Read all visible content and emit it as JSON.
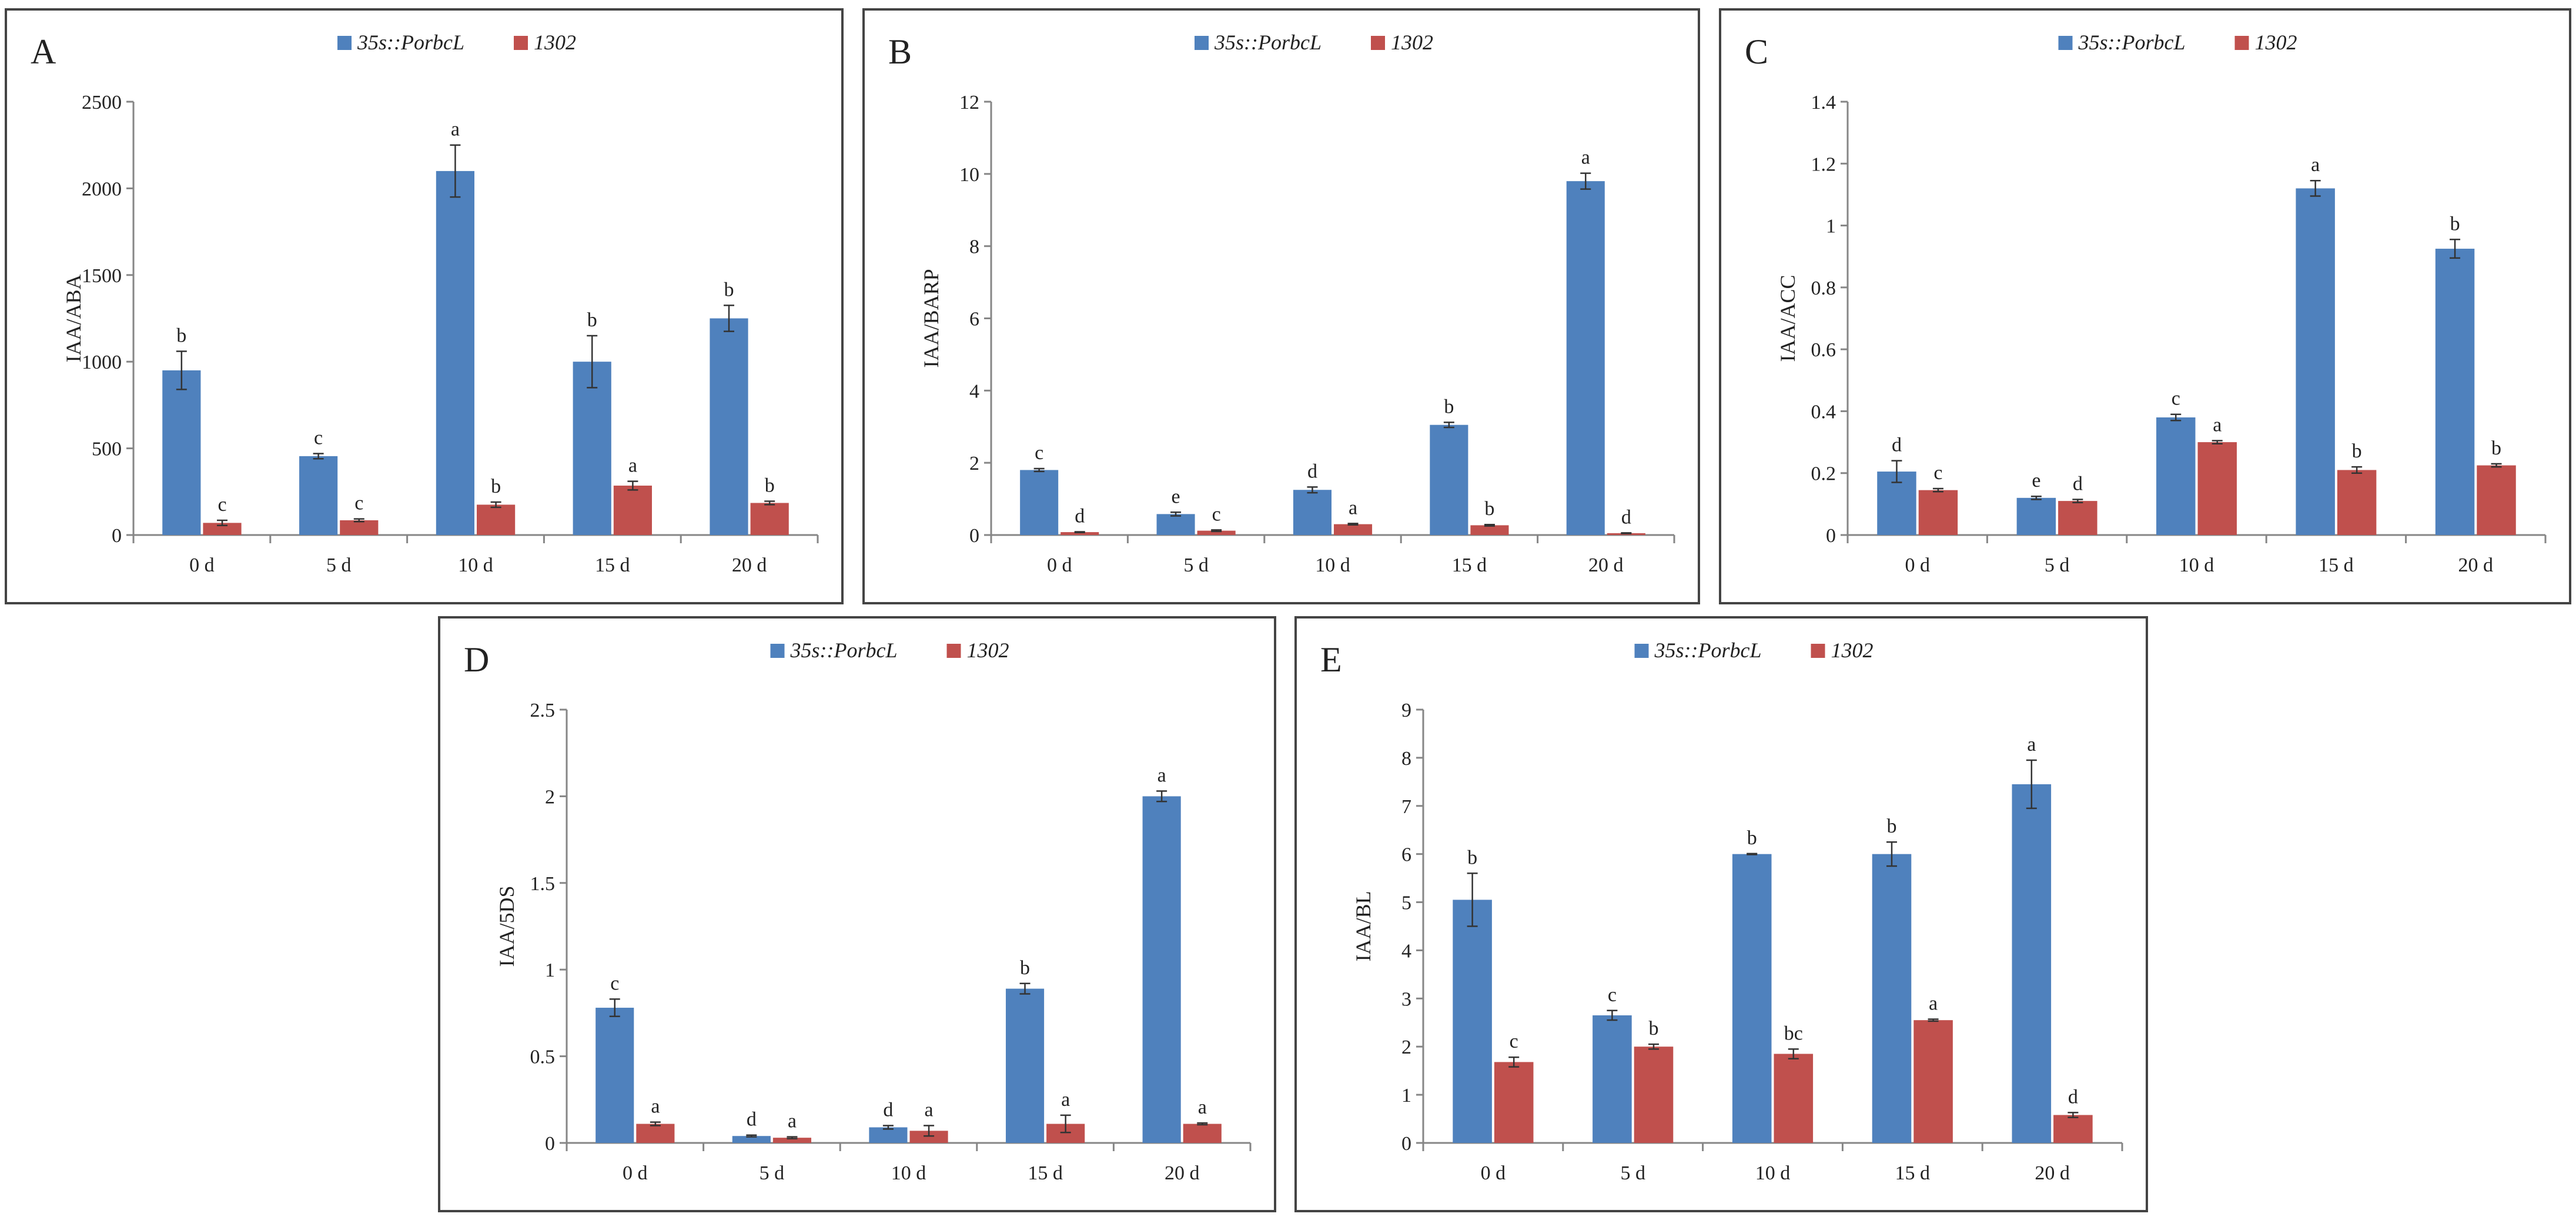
{
  "colors": {
    "series1": "#4F81BD",
    "series2": "#C0504D",
    "axis": "#868686",
    "errorbar": "#333333"
  },
  "chart_data": [
    {
      "type": "bar",
      "panel": "A",
      "ylabel": "IAA/ABA",
      "categories": [
        "0 d",
        "5 d",
        "10 d",
        "15 d",
        "20 d"
      ],
      "ylim": [
        0,
        2500
      ],
      "yticks": [
        0,
        500,
        1000,
        1500,
        2000,
        2500
      ],
      "series": [
        {
          "name": "35s::PorbcL",
          "values": [
            950,
            455,
            2100,
            1000,
            1250
          ],
          "errors": [
            110,
            15,
            150,
            150,
            75
          ],
          "sig": [
            "b",
            "c",
            "a",
            "b",
            "b"
          ]
        },
        {
          "name": "1302",
          "values": [
            70,
            85,
            175,
            285,
            185
          ],
          "errors": [
            15,
            8,
            15,
            25,
            10
          ],
          "sig": [
            "c",
            "c",
            "b",
            "a",
            "b"
          ]
        }
      ]
    },
    {
      "type": "bar",
      "panel": "B",
      "ylabel": "IAA/BARP",
      "categories": [
        "0 d",
        "5 d",
        "10 d",
        "15 d",
        "20 d"
      ],
      "ylim": [
        0,
        12
      ],
      "yticks": [
        0,
        2,
        4,
        6,
        8,
        10,
        12
      ],
      "series": [
        {
          "name": "35s::PorbcL",
          "values": [
            1.8,
            0.58,
            1.25,
            3.05,
            9.8
          ],
          "errors": [
            0.04,
            0.05,
            0.08,
            0.07,
            0.22
          ],
          "sig": [
            "c",
            "e",
            "d",
            "b",
            "a"
          ]
        },
        {
          "name": "1302",
          "values": [
            0.08,
            0.12,
            0.3,
            0.27,
            0.05
          ],
          "errors": [
            0.01,
            0.02,
            0.02,
            0.02,
            0.01
          ],
          "sig": [
            "d",
            "c",
            "a",
            "b",
            "d"
          ]
        }
      ]
    },
    {
      "type": "bar",
      "panel": "C",
      "ylabel": "IAA/ACC",
      "categories": [
        "0 d",
        "5 d",
        "10 d",
        "15 d",
        "20 d"
      ],
      "ylim": [
        0,
        1.4
      ],
      "yticks": [
        0,
        0.2,
        0.4,
        0.6,
        0.8,
        1.0,
        1.2,
        1.4
      ],
      "ytick_labels": [
        "0",
        "0.2",
        "0.4",
        "0.6",
        "0.8",
        "1",
        "1.2",
        "1.4"
      ],
      "series": [
        {
          "name": "35s::PorbcL",
          "values": [
            0.205,
            0.12,
            0.38,
            1.12,
            0.925
          ],
          "errors": [
            0.035,
            0.005,
            0.01,
            0.025,
            0.03
          ],
          "sig": [
            "d",
            "e",
            "c",
            "a",
            "b"
          ]
        },
        {
          "name": "1302",
          "values": [
            0.145,
            0.11,
            0.3,
            0.21,
            0.225
          ],
          "errors": [
            0.005,
            0.005,
            0.005,
            0.01,
            0.005
          ],
          "sig": [
            "c",
            "d",
            "a",
            "b",
            "b"
          ]
        }
      ]
    },
    {
      "type": "bar",
      "panel": "D",
      "ylabel": "IAA/5DS",
      "categories": [
        "0 d",
        "5 d",
        "10 d",
        "15 d",
        "20 d"
      ],
      "ylim": [
        0,
        2.5
      ],
      "yticks": [
        0,
        0.5,
        1.0,
        1.5,
        2.0,
        2.5
      ],
      "ytick_labels": [
        "0",
        "0.5",
        "1",
        "1.5",
        "2",
        "2.5"
      ],
      "series": [
        {
          "name": "35s::PorbcL",
          "values": [
            0.78,
            0.04,
            0.09,
            0.89,
            2.0
          ],
          "errors": [
            0.05,
            0.005,
            0.01,
            0.03,
            0.03
          ],
          "sig": [
            "c",
            "d",
            "d",
            "b",
            "a"
          ]
        },
        {
          "name": "1302",
          "values": [
            0.11,
            0.03,
            0.07,
            0.11,
            0.11
          ],
          "errors": [
            0.01,
            0.005,
            0.03,
            0.05,
            0.005
          ],
          "sig": [
            "a",
            "a",
            "a",
            "a",
            "a"
          ]
        }
      ]
    },
    {
      "type": "bar",
      "panel": "E",
      "ylabel": "IAA/BL",
      "categories": [
        "0 d",
        "5 d",
        "10 d",
        "15 d",
        "20 d"
      ],
      "ylim": [
        0,
        9
      ],
      "yticks": [
        0,
        1,
        2,
        3,
        4,
        5,
        6,
        7,
        8,
        9
      ],
      "series": [
        {
          "name": "35s::PorbcL",
          "values": [
            5.05,
            2.65,
            6.0,
            6.0,
            7.45
          ],
          "errors": [
            0.55,
            0.1,
            0.01,
            0.25,
            0.5
          ],
          "sig": [
            "b",
            "c",
            "b",
            "b",
            "a"
          ]
        },
        {
          "name": "1302",
          "values": [
            1.68,
            2.0,
            1.85,
            2.55,
            0.58
          ],
          "errors": [
            0.1,
            0.05,
            0.1,
            0.02,
            0.05
          ],
          "sig": [
            "c",
            "b",
            "bc",
            "a",
            "d"
          ]
        }
      ]
    }
  ]
}
